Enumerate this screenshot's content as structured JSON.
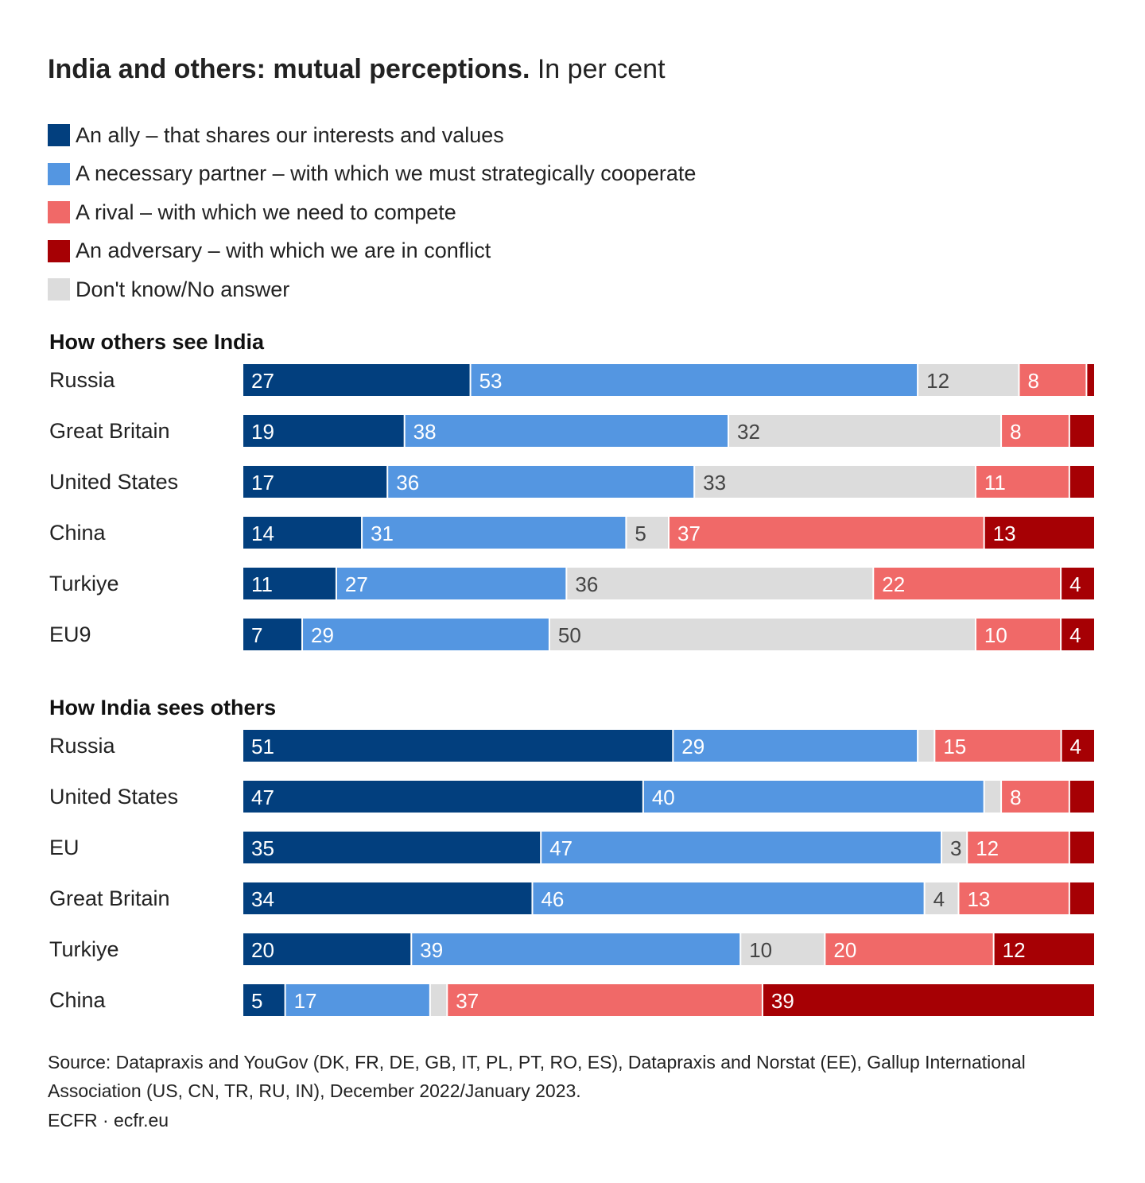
{
  "title": {
    "bold": "India and others: mutual perceptions.",
    "light": "In per cent"
  },
  "source": "Source: Datapraxis and YouGov (DK, FR, DE, GB, IT, PL, PT, RO, ES), Datapraxis and Norstat (EE), Gallup International Association (US, CN, TR, RU, IN), December 2022/January 2023.",
  "credit": "ECFR · ecfr.eu",
  "chart_data": {
    "type": "bar",
    "orientation": "horizontal",
    "stacked": true,
    "unit": "per cent",
    "legend": [
      {
        "key": "ally",
        "label": "An ally – that shares our interests and values",
        "color": "#023f7e"
      },
      {
        "key": "partner",
        "label": "A necessary partner – with which we must strategically cooperate",
        "color": "#5496e1"
      },
      {
        "key": "rival",
        "label": "A rival – with which we need to compete",
        "color": "#f06968"
      },
      {
        "key": "adversary",
        "label": "An adversary – with which we are in conflict",
        "color": "#a60004"
      },
      {
        "key": "dontknow",
        "label": "Don't know/No answer",
        "color": "#dcdcdc"
      }
    ],
    "segment_order": [
      "ally",
      "partner",
      "dontknow",
      "rival",
      "adversary"
    ],
    "panels": [
      {
        "title": "How others see India",
        "rows": [
          {
            "label": "Russia",
            "values": {
              "ally": 27,
              "partner": 53,
              "dontknow": 12,
              "rival": 8,
              "adversary": 1
            }
          },
          {
            "label": "Great Britain",
            "values": {
              "ally": 19,
              "partner": 38,
              "dontknow": 32,
              "rival": 8,
              "adversary": 3
            }
          },
          {
            "label": "United States",
            "values": {
              "ally": 17,
              "partner": 36,
              "dontknow": 33,
              "rival": 11,
              "adversary": 3
            }
          },
          {
            "label": "China",
            "values": {
              "ally": 14,
              "partner": 31,
              "dontknow": 5,
              "rival": 37,
              "adversary": 13
            }
          },
          {
            "label": "Turkiye",
            "values": {
              "ally": 11,
              "partner": 27,
              "dontknow": 36,
              "rival": 22,
              "adversary": 4
            }
          },
          {
            "label": "EU9",
            "values": {
              "ally": 7,
              "partner": 29,
              "dontknow": 50,
              "rival": 10,
              "adversary": 4
            }
          }
        ]
      },
      {
        "title": "How India sees others",
        "rows": [
          {
            "label": "Russia",
            "values": {
              "ally": 51,
              "partner": 29,
              "dontknow": 2,
              "rival": 15,
              "adversary": 4
            }
          },
          {
            "label": "United States",
            "values": {
              "ally": 47,
              "partner": 40,
              "dontknow": 2,
              "rival": 8,
              "adversary": 3
            }
          },
          {
            "label": "EU",
            "values": {
              "ally": 35,
              "partner": 47,
              "dontknow": 3,
              "rival": 12,
              "adversary": 3
            }
          },
          {
            "label": "Great Britain",
            "values": {
              "ally": 34,
              "partner": 46,
              "dontknow": 4,
              "rival": 13,
              "adversary": 3
            }
          },
          {
            "label": "Turkiye",
            "values": {
              "ally": 20,
              "partner": 39,
              "dontknow": 10,
              "rival": 20,
              "adversary": 12
            }
          },
          {
            "label": "China",
            "values": {
              "ally": 5,
              "partner": 17,
              "dontknow": 2,
              "rival": 37,
              "adversary": 39
            }
          }
        ]
      }
    ],
    "labeled_values": [
      [
        [
          27,
          53,
          12,
          8,
          null
        ],
        [
          19,
          38,
          32,
          8,
          null
        ],
        [
          17,
          36,
          33,
          11,
          null
        ],
        [
          14,
          31,
          5,
          37,
          13
        ],
        [
          11,
          27,
          36,
          22,
          4
        ],
        [
          7,
          29,
          50,
          10,
          4
        ]
      ],
      [
        [
          51,
          29,
          null,
          15,
          4
        ],
        [
          47,
          40,
          null,
          8,
          null
        ],
        [
          35,
          47,
          3,
          12,
          null
        ],
        [
          34,
          46,
          4,
          13,
          null
        ],
        [
          20,
          39,
          10,
          20,
          12
        ],
        [
          5,
          17,
          null,
          37,
          39
        ]
      ]
    ],
    "xlim": [
      0,
      100
    ]
  }
}
